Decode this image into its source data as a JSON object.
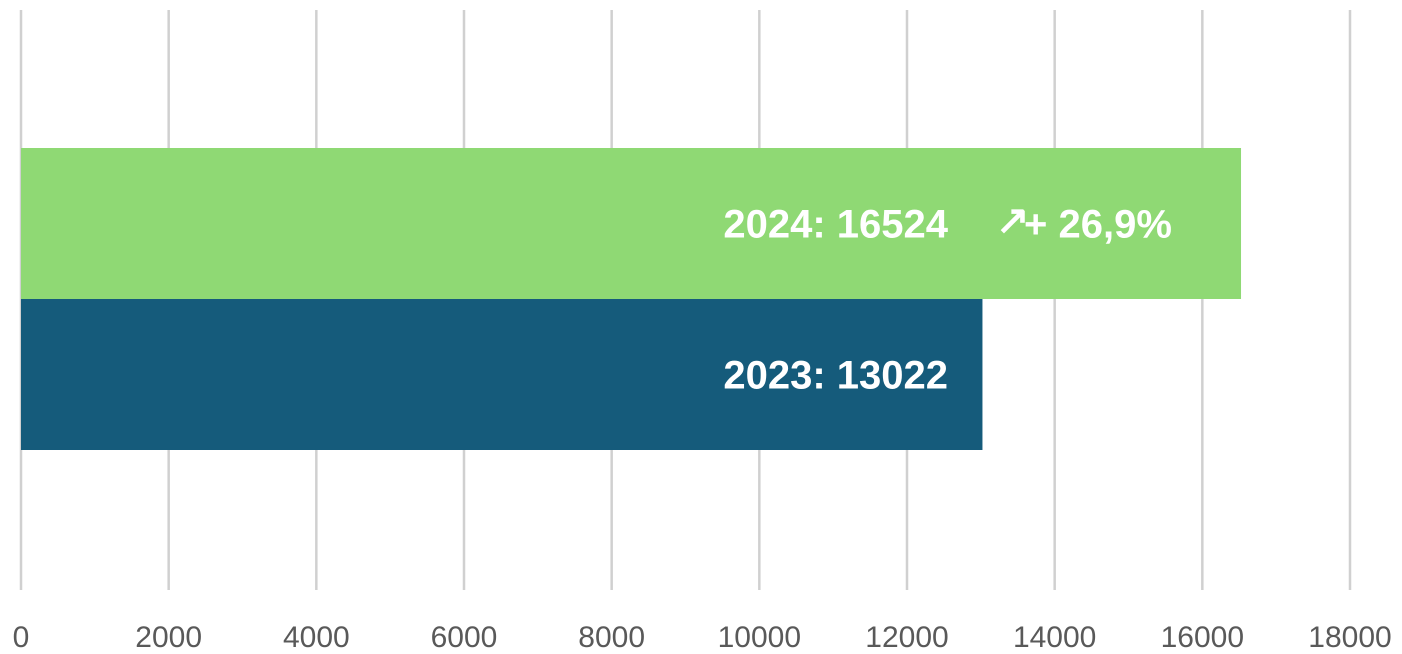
{
  "chart_data": {
    "type": "bar",
    "orientation": "horizontal",
    "title": "",
    "xlabel": "",
    "ylabel": "",
    "xlim": [
      0,
      18000
    ],
    "ticks": [
      0,
      2000,
      4000,
      6000,
      8000,
      10000,
      12000,
      14000,
      16000,
      18000
    ],
    "tick_labels": [
      "0",
      "2000",
      "4000",
      "6000",
      "8000",
      "10000",
      "12000",
      "14000",
      "16000",
      "18000"
    ],
    "grid": true,
    "legend": "none",
    "bars": [
      {
        "category": "2024",
        "value": 16524,
        "label": "2024: 16524",
        "color": "#8fd974"
      },
      {
        "category": "2023",
        "value": 13022,
        "label": "2023: 13022",
        "color": "#155b7b"
      }
    ],
    "annotation": {
      "icon": "arrow-up-right-icon",
      "symbol": "↗",
      "text": "+ 26,9%"
    },
    "colors": {
      "grid": "#d0d0d0",
      "tick_text": "#595959",
      "bar_text": "#ffffff"
    }
  }
}
